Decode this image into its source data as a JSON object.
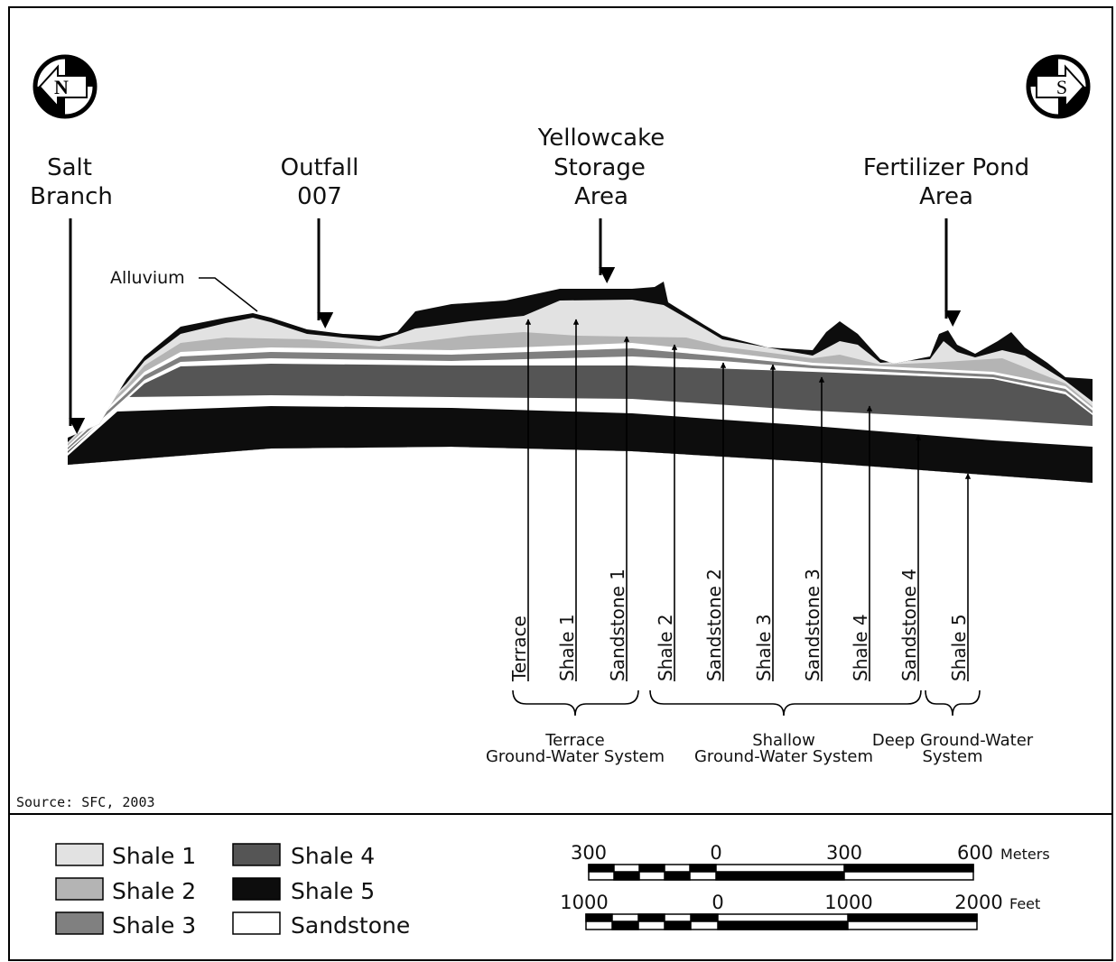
{
  "compass": {
    "north": "N",
    "south": "S"
  },
  "sites": [
    {
      "lines": [
        "Salt",
        "Branch"
      ]
    },
    {
      "lines": [
        "Outfall",
        "007"
      ]
    },
    {
      "lines": [
        "Yellowcake",
        "Storage",
        "Area"
      ]
    },
    {
      "lines": [
        "Fertilizer Pond",
        "Area"
      ]
    }
  ],
  "alluvium": "Alluvium",
  "units": [
    "Terrace",
    "Shale 1",
    "Sandstone 1",
    "Shale 2",
    "Sandstone 2",
    "Shale 3",
    "Sandstone 3",
    "Shale 4",
    "Sandstone 4",
    "Shale 5"
  ],
  "systems": [
    {
      "lines": [
        "Terrace",
        "Ground-Water System"
      ]
    },
    {
      "lines": [
        "Shallow",
        "Ground-Water System"
      ]
    },
    {
      "lines": [
        "Deep Ground-Water",
        "System"
      ]
    }
  ],
  "source": "Source: SFC, 2003",
  "legend": [
    {
      "label": "Shale 1",
      "color": "#e2e2e2"
    },
    {
      "label": "Shale 2",
      "color": "#b4b4b4"
    },
    {
      "label": "Shale 3",
      "color": "#808080"
    },
    {
      "label": "Shale 4",
      "color": "#555555"
    },
    {
      "label": "Shale 5",
      "color": "#0d0d0d"
    },
    {
      "label": "Sandstone",
      "color": "#ffffff"
    }
  ],
  "scales": [
    {
      "ticks": [
        "300",
        "0",
        "300",
        "600"
      ],
      "unit": "Meters"
    },
    {
      "ticks": [
        "1000",
        "0",
        "1000",
        "2000"
      ],
      "unit": "Feet"
    }
  ]
}
